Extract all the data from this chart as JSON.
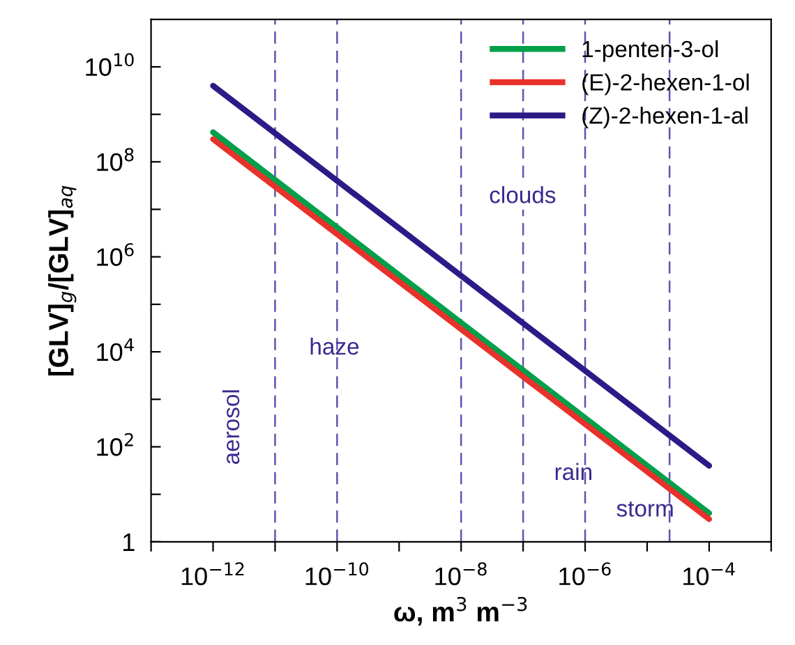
{
  "chart_data": {
    "type": "line",
    "xlabel": "ω, m$^{3}$ m$^{−3}$",
    "ylabel": "[GLV]$_{g}$/[GLV]$_{aq}$",
    "log": "xy",
    "grid": false,
    "legend": "top right",
    "line_style": "solid",
    "marker": "none",
    "x": [
      1e-12,
      0.0001
    ],
    "series": [
      {
        "name": "1-penten-3-ol",
        "color": "#00a04a",
        "values": [
          420000000.0,
          4
        ]
      },
      {
        "name": "(E)-2-hexen-1-ol",
        "color": "#e8312b",
        "values": [
          300000000.0,
          3
        ]
      },
      {
        "name": "(Z)-2-hexen-1-al",
        "color": "#2e1a87",
        "values": [
          4000000000.0,
          40
        ]
      }
    ],
    "xlim": [
      1e-13,
      0.001
    ],
    "xticks": [
      {
        "value": 1e-13,
        "label": null
      },
      {
        "value": 1e-12,
        "label": "10$^{−12}$"
      },
      {
        "value": 1e-11,
        "label": null
      },
      {
        "value": 1e-10,
        "label": "10$^{−10}$"
      },
      {
        "value": 1e-09,
        "label": null
      },
      {
        "value": 1e-08,
        "label": "10$^{−8}$"
      },
      {
        "value": 1e-07,
        "label": null
      },
      {
        "value": 1e-06,
        "label": "10$^{−6}$"
      },
      {
        "value": 1e-05,
        "label": null
      },
      {
        "value": 0.0001,
        "label": "10$^{−4}$"
      },
      {
        "value": 0.001,
        "label": null
      }
    ],
    "ylim": [
      1,
      100000000000.0
    ],
    "yticks": [
      1,
      {
        "value": 10,
        "label": null
      },
      {
        "value": 100,
        "label": "10$^{2}$"
      },
      {
        "value": 1000.0,
        "label": null
      },
      {
        "value": 10000.0,
        "label": "10$^{4}$"
      },
      {
        "value": 100000.0,
        "label": null
      },
      {
        "value": 1000000.0,
        "label": "10$^{6}$"
      },
      {
        "value": 10000000.0,
        "label": null
      },
      {
        "value": 100000000.0,
        "label": "10$^{8}$"
      },
      {
        "value": 1000000000.0,
        "label": null
      },
      {
        "value": 10000000000.0,
        "label": "10$^{10}$"
      }
    ],
    "ref_lines": [
      {
        "axis": "x",
        "value": 1e-11,
        "color": "#5b55b0",
        "line_style": "dashed"
      },
      {
        "axis": "x",
        "value": 1e-10,
        "color": "#5b55b0",
        "line_style": "dashed"
      },
      {
        "axis": "x",
        "value": 1e-08,
        "color": "#5b55b0",
        "line_style": "dashed"
      },
      {
        "axis": "x",
        "value": 1e-07,
        "color": "#5b55b0",
        "line_style": "dashed"
      },
      {
        "axis": "x",
        "value": 1e-06,
        "color": "#5b55b0",
        "line_style": "dashed"
      },
      {
        "axis": "x",
        "value": 2.3e-05,
        "color": "#5b55b0",
        "line_style": "dashed"
      }
    ],
    "annotations": [
      "aerosol",
      "haze",
      "clouds",
      "rain",
      "storm"
    ]
  }
}
